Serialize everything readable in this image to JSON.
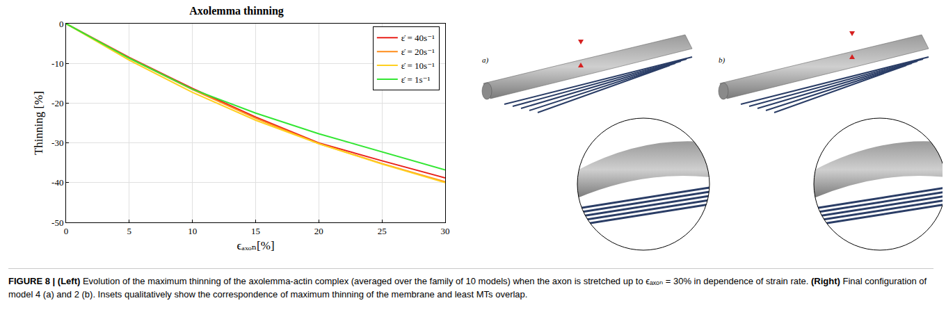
{
  "chart_data": {
    "type": "line",
    "title": "Axolemma thinning",
    "x_label": "ϵₐₓₒₙ[%]",
    "y_label": "Thinning [%]",
    "x": [
      0,
      5,
      10,
      15,
      20,
      25,
      30
    ],
    "series": [
      {
        "name": "ε̇ = 40s⁻¹",
        "color": "#e8201a",
        "values": [
          0,
          -8.5,
          -16.3,
          -23.5,
          -30.0,
          -34.5,
          -38.8
        ]
      },
      {
        "name": "ε̇ = 20s⁻¹",
        "color": "#ff8c1a",
        "values": [
          0,
          -8.7,
          -16.6,
          -23.8,
          -30.2,
          -35.2,
          -39.8
        ]
      },
      {
        "name": "ε̇ = 10s⁻¹",
        "color": "#ffd020",
        "values": [
          0,
          -9.2,
          -17.3,
          -24.3,
          -30.2,
          -35.3,
          -40.0
        ]
      },
      {
        "name": "ε̇ = 1s⁻¹",
        "color": "#33e633",
        "values": [
          0,
          -8.7,
          -16.5,
          -22.5,
          -27.7,
          -32.3,
          -36.8
        ]
      }
    ],
    "xlim": [
      0,
      30
    ],
    "xticks": [
      0,
      5,
      10,
      15,
      20,
      25,
      30
    ],
    "ylim": [
      -50,
      0
    ],
    "yticks": [
      -50,
      -40,
      -30,
      -20,
      -10,
      0
    ],
    "grid": true,
    "legend": "upper right"
  },
  "renders": [
    {
      "label": "a)"
    },
    {
      "label": "b)"
    }
  ],
  "caption": {
    "parts": [
      {
        "text": "FIGURE 8 | ",
        "bold": true
      },
      {
        "text": "(Left)",
        "bold": true
      },
      {
        "text": " Evolution of the maximum thinning of the axolemma-actin complex (averaged over the family of 10 models) when the axon is stretched up to ϵₐₓₒₙ = 30% in dependence of strain rate. ",
        "bold": false
      },
      {
        "text": "(Right)",
        "bold": true
      },
      {
        "text": " Final configuration of model 4 (a) and 2 (b). Insets qualitatively show the correspondence of maximum thinning of the membrane and least MTs overlap.",
        "bold": false
      }
    ]
  }
}
